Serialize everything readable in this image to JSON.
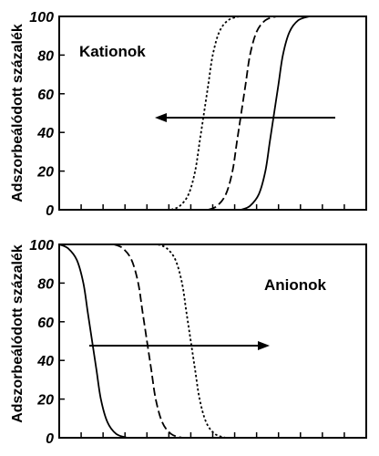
{
  "chart_data": [
    {
      "type": "line",
      "title": "",
      "annotation": "Kationok",
      "xlabel": "",
      "ylabel": "Adszorbeálódott százalék",
      "ylim": [
        0,
        100
      ],
      "yticks": [
        "0",
        "20",
        "40",
        "60",
        "80",
        "100"
      ],
      "x_tick_count": 14,
      "x_tick_labels_shown": false,
      "grid": false,
      "arrow_direction": "left",
      "series": [
        {
          "line_style": "dotted",
          "x": [
            5.1,
            5.5,
            5.9,
            6.2,
            6.4,
            6.6,
            6.8,
            7.0,
            7.3,
            7.7,
            8.2
          ],
          "values": [
            0,
            2,
            8,
            20,
            35,
            50,
            65,
            80,
            92,
            98,
            100
          ]
        },
        {
          "line_style": "dashed",
          "x": [
            6.8,
            7.2,
            7.6,
            7.9,
            8.1,
            8.3,
            8.5,
            8.7,
            9.0,
            9.4,
            9.9
          ],
          "values": [
            0,
            2,
            8,
            20,
            35,
            50,
            65,
            80,
            92,
            98,
            100
          ]
        },
        {
          "line_style": "solid",
          "x": [
            8.3,
            8.7,
            9.1,
            9.4,
            9.6,
            9.8,
            10.0,
            10.2,
            10.5,
            10.9,
            11.4
          ],
          "values": [
            0,
            2,
            8,
            20,
            35,
            50,
            65,
            80,
            92,
            98,
            100
          ]
        }
      ]
    },
    {
      "type": "line",
      "title": "",
      "annotation": "Anionok",
      "xlabel": "",
      "ylabel": "Adszorbeálódott százalék",
      "ylim": [
        0,
        100
      ],
      "yticks": [
        "0",
        "20",
        "40",
        "60",
        "80",
        "100"
      ],
      "x_tick_count": 14,
      "x_tick_labels_shown": false,
      "grid": false,
      "arrow_direction": "right",
      "series": [
        {
          "line_style": "solid",
          "x": [
            0.0,
            0.4,
            0.8,
            1.1,
            1.3,
            1.5,
            1.7,
            1.9,
            2.2,
            2.6,
            3.1
          ],
          "values": [
            100,
            98,
            92,
            80,
            65,
            50,
            35,
            20,
            8,
            2,
            0
          ]
        },
        {
          "line_style": "dashed",
          "x": [
            2.5,
            2.9,
            3.3,
            3.6,
            3.8,
            4.0,
            4.2,
            4.4,
            4.7,
            5.1,
            5.6
          ],
          "values": [
            100,
            98,
            92,
            80,
            65,
            50,
            35,
            20,
            8,
            2,
            0
          ]
        },
        {
          "line_style": "dotted",
          "x": [
            4.5,
            4.9,
            5.3,
            5.6,
            5.8,
            6.0,
            6.2,
            6.4,
            6.7,
            7.1,
            7.6
          ],
          "values": [
            100,
            98,
            92,
            80,
            65,
            50,
            35,
            20,
            8,
            2,
            0
          ]
        }
      ]
    }
  ]
}
